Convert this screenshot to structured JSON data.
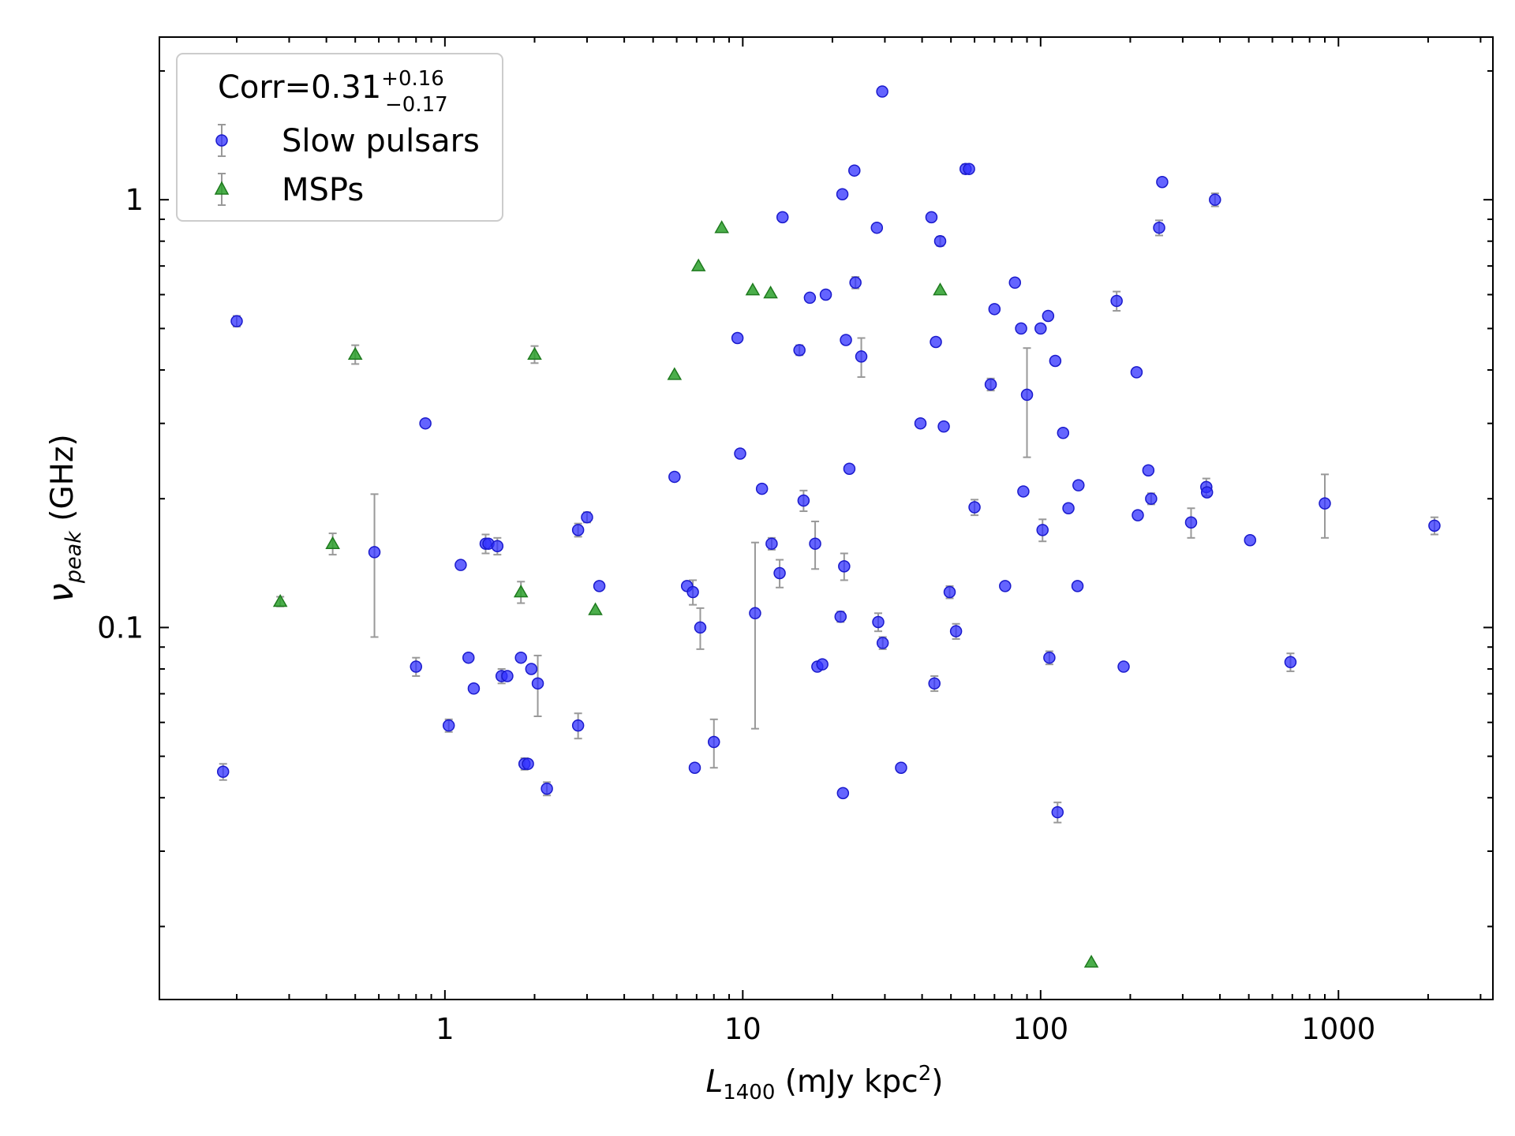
{
  "chart_data": {
    "type": "scatter",
    "x_scale": "log",
    "y_scale": "log",
    "xlim": [
      0.11,
      3300
    ],
    "ylim": [
      0.0135,
      2.4
    ],
    "x_ticks": [
      1,
      10,
      100,
      1000
    ],
    "x_tick_labels": [
      "1",
      "10",
      "100",
      "1000"
    ],
    "y_ticks": [
      0.1,
      1
    ],
    "y_tick_labels": [
      "0.1",
      "1"
    ],
    "xlabel": {
      "main": "L",
      "sub": "1400",
      "rest": " (mJy kpc",
      "sup": "2",
      "end": ")"
    },
    "ylabel": {
      "main": "ν",
      "sub": "peak",
      "rest": " (GHz)"
    },
    "legend": {
      "placement": "upper-left",
      "title": {
        "main": "Corr=0.31",
        "sup": "+0.16",
        "sub": "−0.17"
      },
      "entries": [
        "Slow pulsars",
        "MSPs"
      ]
    },
    "grid": false,
    "colors": {
      "slow": "#3030ff",
      "msp": "#2ca02c",
      "errorbar": "#999999"
    },
    "series": [
      {
        "name": "Slow pulsars",
        "marker": "circle",
        "points": [
          [
            0.18,
            0.046,
            0.002
          ],
          [
            0.2,
            0.52,
            0.015
          ],
          [
            0.58,
            0.15,
            0.055
          ],
          [
            0.8,
            0.081,
            0.004
          ],
          [
            0.86,
            0.3,
            0
          ],
          [
            1.03,
            0.059,
            0.002
          ],
          [
            1.13,
            0.14,
            0
          ],
          [
            1.2,
            0.085,
            0
          ],
          [
            1.25,
            0.072,
            0
          ],
          [
            1.37,
            0.157,
            0.008
          ],
          [
            1.4,
            0.157,
            0
          ],
          [
            1.5,
            0.155,
            0.007
          ],
          [
            1.55,
            0.077,
            0.003
          ],
          [
            1.62,
            0.077,
            0
          ],
          [
            1.8,
            0.085,
            0
          ],
          [
            1.85,
            0.048,
            0.0015
          ],
          [
            1.9,
            0.048,
            0
          ],
          [
            1.95,
            0.08,
            0
          ],
          [
            2.05,
            0.074,
            0.012
          ],
          [
            2.2,
            0.042,
            0.0015
          ],
          [
            2.8,
            0.169,
            0.006
          ],
          [
            2.8,
            0.059,
            0.004
          ],
          [
            3.0,
            0.181,
            0.005
          ],
          [
            3.3,
            0.125,
            0
          ],
          [
            5.9,
            0.225,
            0
          ],
          [
            6.5,
            0.125,
            0
          ],
          [
            6.8,
            0.121,
            0.008
          ],
          [
            6.9,
            0.047,
            0
          ],
          [
            7.2,
            0.1,
            0.011
          ],
          [
            8.0,
            0.054,
            0.007
          ],
          [
            9.6,
            0.475,
            0
          ],
          [
            9.8,
            0.255,
            0
          ],
          [
            11.0,
            0.108,
            0.05
          ],
          [
            11.6,
            0.211,
            0
          ],
          [
            12.5,
            0.157,
            0.005
          ],
          [
            13.3,
            0.134,
            0.01
          ],
          [
            13.6,
            0.91,
            0
          ],
          [
            15.5,
            0.445,
            0.012
          ],
          [
            16.0,
            0.198,
            0.011
          ],
          [
            16.8,
            0.59,
            0
          ],
          [
            17.5,
            0.157,
            0.02
          ],
          [
            17.8,
            0.081,
            0
          ],
          [
            18.5,
            0.082,
            0
          ],
          [
            19.0,
            0.6,
            0
          ],
          [
            21.3,
            0.106,
            0.003
          ],
          [
            21.6,
            1.03,
            0
          ],
          [
            21.7,
            0.041,
            0
          ],
          [
            21.9,
            0.139,
            0.01
          ],
          [
            22.2,
            0.47,
            0
          ],
          [
            22.8,
            0.235,
            0
          ],
          [
            23.7,
            1.17,
            0
          ],
          [
            23.9,
            0.64,
            0.02
          ],
          [
            25.0,
            0.43,
            0.045
          ],
          [
            28.2,
            0.86,
            0
          ],
          [
            28.5,
            0.103,
            0.005
          ],
          [
            29.4,
            1.79,
            0
          ],
          [
            29.5,
            0.092,
            0.003
          ],
          [
            34.0,
            0.047,
            0
          ],
          [
            39.5,
            0.3,
            0
          ],
          [
            43.0,
            0.91,
            0
          ],
          [
            44.0,
            0.074,
            0.003
          ],
          [
            44.5,
            0.465,
            0
          ],
          [
            46.0,
            0.8,
            0.02
          ],
          [
            47.3,
            0.295,
            0
          ],
          [
            49.5,
            0.121,
            0.004
          ],
          [
            52.0,
            0.098,
            0.004
          ],
          [
            56.0,
            1.18,
            0.03
          ],
          [
            57.5,
            1.18,
            0
          ],
          [
            60.0,
            0.191,
            0.008
          ],
          [
            68.0,
            0.37,
            0.012
          ],
          [
            70.0,
            0.555,
            0
          ],
          [
            76.0,
            0.125,
            0
          ],
          [
            82.0,
            0.64,
            0
          ],
          [
            86.0,
            0.5,
            0
          ],
          [
            87.5,
            0.208,
            0
          ],
          [
            90.0,
            0.35,
            0.1
          ],
          [
            100.0,
            0.5,
            0
          ],
          [
            101.5,
            0.169,
            0.01
          ],
          [
            106.0,
            0.535,
            0
          ],
          [
            107.0,
            0.085,
            0.003
          ],
          [
            112.0,
            0.42,
            0
          ],
          [
            114.0,
            0.037,
            0.002
          ],
          [
            119.0,
            0.285,
            0
          ],
          [
            124.0,
            0.19,
            0
          ],
          [
            133.0,
            0.125,
            0
          ],
          [
            134.0,
            0.215,
            0
          ],
          [
            180.0,
            0.58,
            0.03
          ],
          [
            190.0,
            0.081,
            0
          ],
          [
            210.0,
            0.395,
            0
          ],
          [
            212.0,
            0.183,
            0
          ],
          [
            230.0,
            0.233,
            0
          ],
          [
            235.0,
            0.2,
            0.006
          ],
          [
            250.0,
            0.86,
            0.035
          ],
          [
            256.0,
            1.1,
            0
          ],
          [
            320.0,
            0.176,
            0.014
          ],
          [
            360.0,
            0.213,
            0.01
          ],
          [
            362.0,
            0.207,
            0
          ],
          [
            385.0,
            1.0,
            0.035
          ],
          [
            505.0,
            0.16,
            0
          ],
          [
            690.0,
            0.083,
            0.004
          ],
          [
            900.0,
            0.195,
            0.033
          ],
          [
            2100.0,
            0.173,
            0.008
          ]
        ]
      },
      {
        "name": "MSPs",
        "marker": "triangle",
        "points": [
          [
            0.28,
            0.115,
            0.003
          ],
          [
            0.42,
            0.157,
            0.009
          ],
          [
            0.5,
            0.435,
            0.022
          ],
          [
            1.8,
            0.121,
            0.007
          ],
          [
            2.0,
            0.435,
            0.02
          ],
          [
            3.2,
            0.11,
            0
          ],
          [
            5.9,
            0.39,
            0
          ],
          [
            7.1,
            0.7,
            0
          ],
          [
            8.5,
            0.86,
            0
          ],
          [
            10.8,
            0.615,
            0
          ],
          [
            12.4,
            0.605,
            0
          ],
          [
            46.0,
            0.615,
            0
          ],
          [
            148.0,
            0.0165,
            0
          ]
        ]
      }
    ]
  }
}
